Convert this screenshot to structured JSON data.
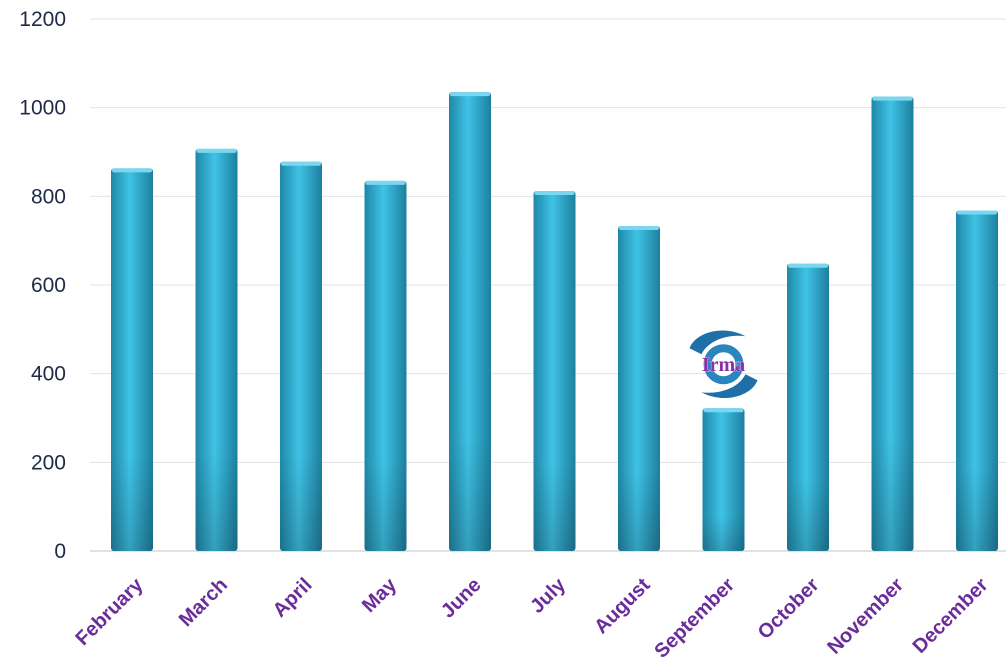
{
  "chart_data": {
    "type": "bar",
    "categories": [
      "February",
      "March",
      "April",
      "May",
      "June",
      "July",
      "August",
      "September",
      "October",
      "November",
      "December"
    ],
    "values": [
      863,
      907,
      878,
      835,
      1035,
      812,
      733,
      322,
      648,
      1025,
      768
    ],
    "title": "",
    "xlabel": "",
    "ylabel": "",
    "ylim": [
      0,
      1200
    ],
    "yticks": [
      0,
      200,
      400,
      600,
      800,
      1000,
      1200
    ],
    "grid": true,
    "bar_color": "#2aa6c9",
    "annotation": {
      "category": "September",
      "text": "Irma",
      "icon": "hurricane-icon"
    }
  }
}
